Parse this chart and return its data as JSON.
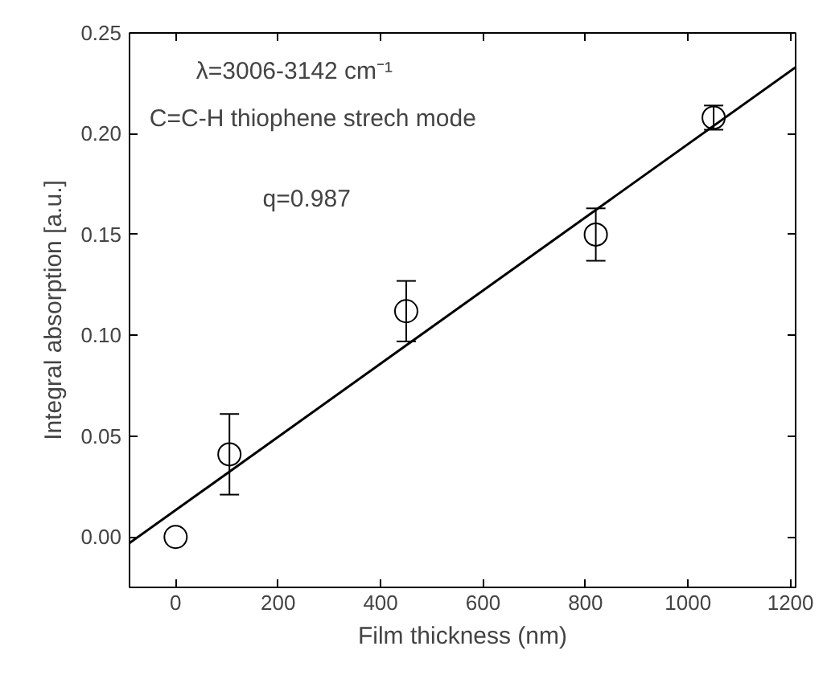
{
  "chart_data": {
    "type": "scatter",
    "xlabel": "Film thickness (nm)",
    "ylabel": "Integral absorption [a.u.]",
    "xlim": [
      -90,
      1210
    ],
    "ylim": [
      -0.025,
      0.25
    ],
    "xticks": [
      0,
      200,
      400,
      600,
      800,
      1000,
      1200
    ],
    "yticks": [
      {
        "value": 0,
        "label": "0.00"
      },
      {
        "value": 0.05,
        "label": "0.05"
      },
      {
        "value": 0.1,
        "label": "0.10"
      },
      {
        "value": 0.15,
        "label": "0.15"
      },
      {
        "value": 0.2,
        "label": "0.20"
      },
      {
        "value": 0.25,
        "label": "0.25"
      }
    ],
    "grid": false,
    "annotations": [
      "λ=3006-3142 cm⁻¹",
      "C=C-H thiophene strech mode",
      "q=0.987"
    ],
    "series": [
      {
        "marker": "circle",
        "color": "#000000",
        "x": [
          0,
          105,
          450,
          820,
          1050
        ],
        "values": [
          0.0,
          0.041,
          0.112,
          0.15,
          0.208
        ],
        "errors": [
          null,
          0.02,
          0.015,
          0.013,
          0.006
        ]
      },
      {
        "type": "line",
        "marker": "none",
        "color": "#000000",
        "x": [
          -90,
          1210
        ],
        "values": [
          -0.003,
          0.233
        ]
      }
    ]
  }
}
